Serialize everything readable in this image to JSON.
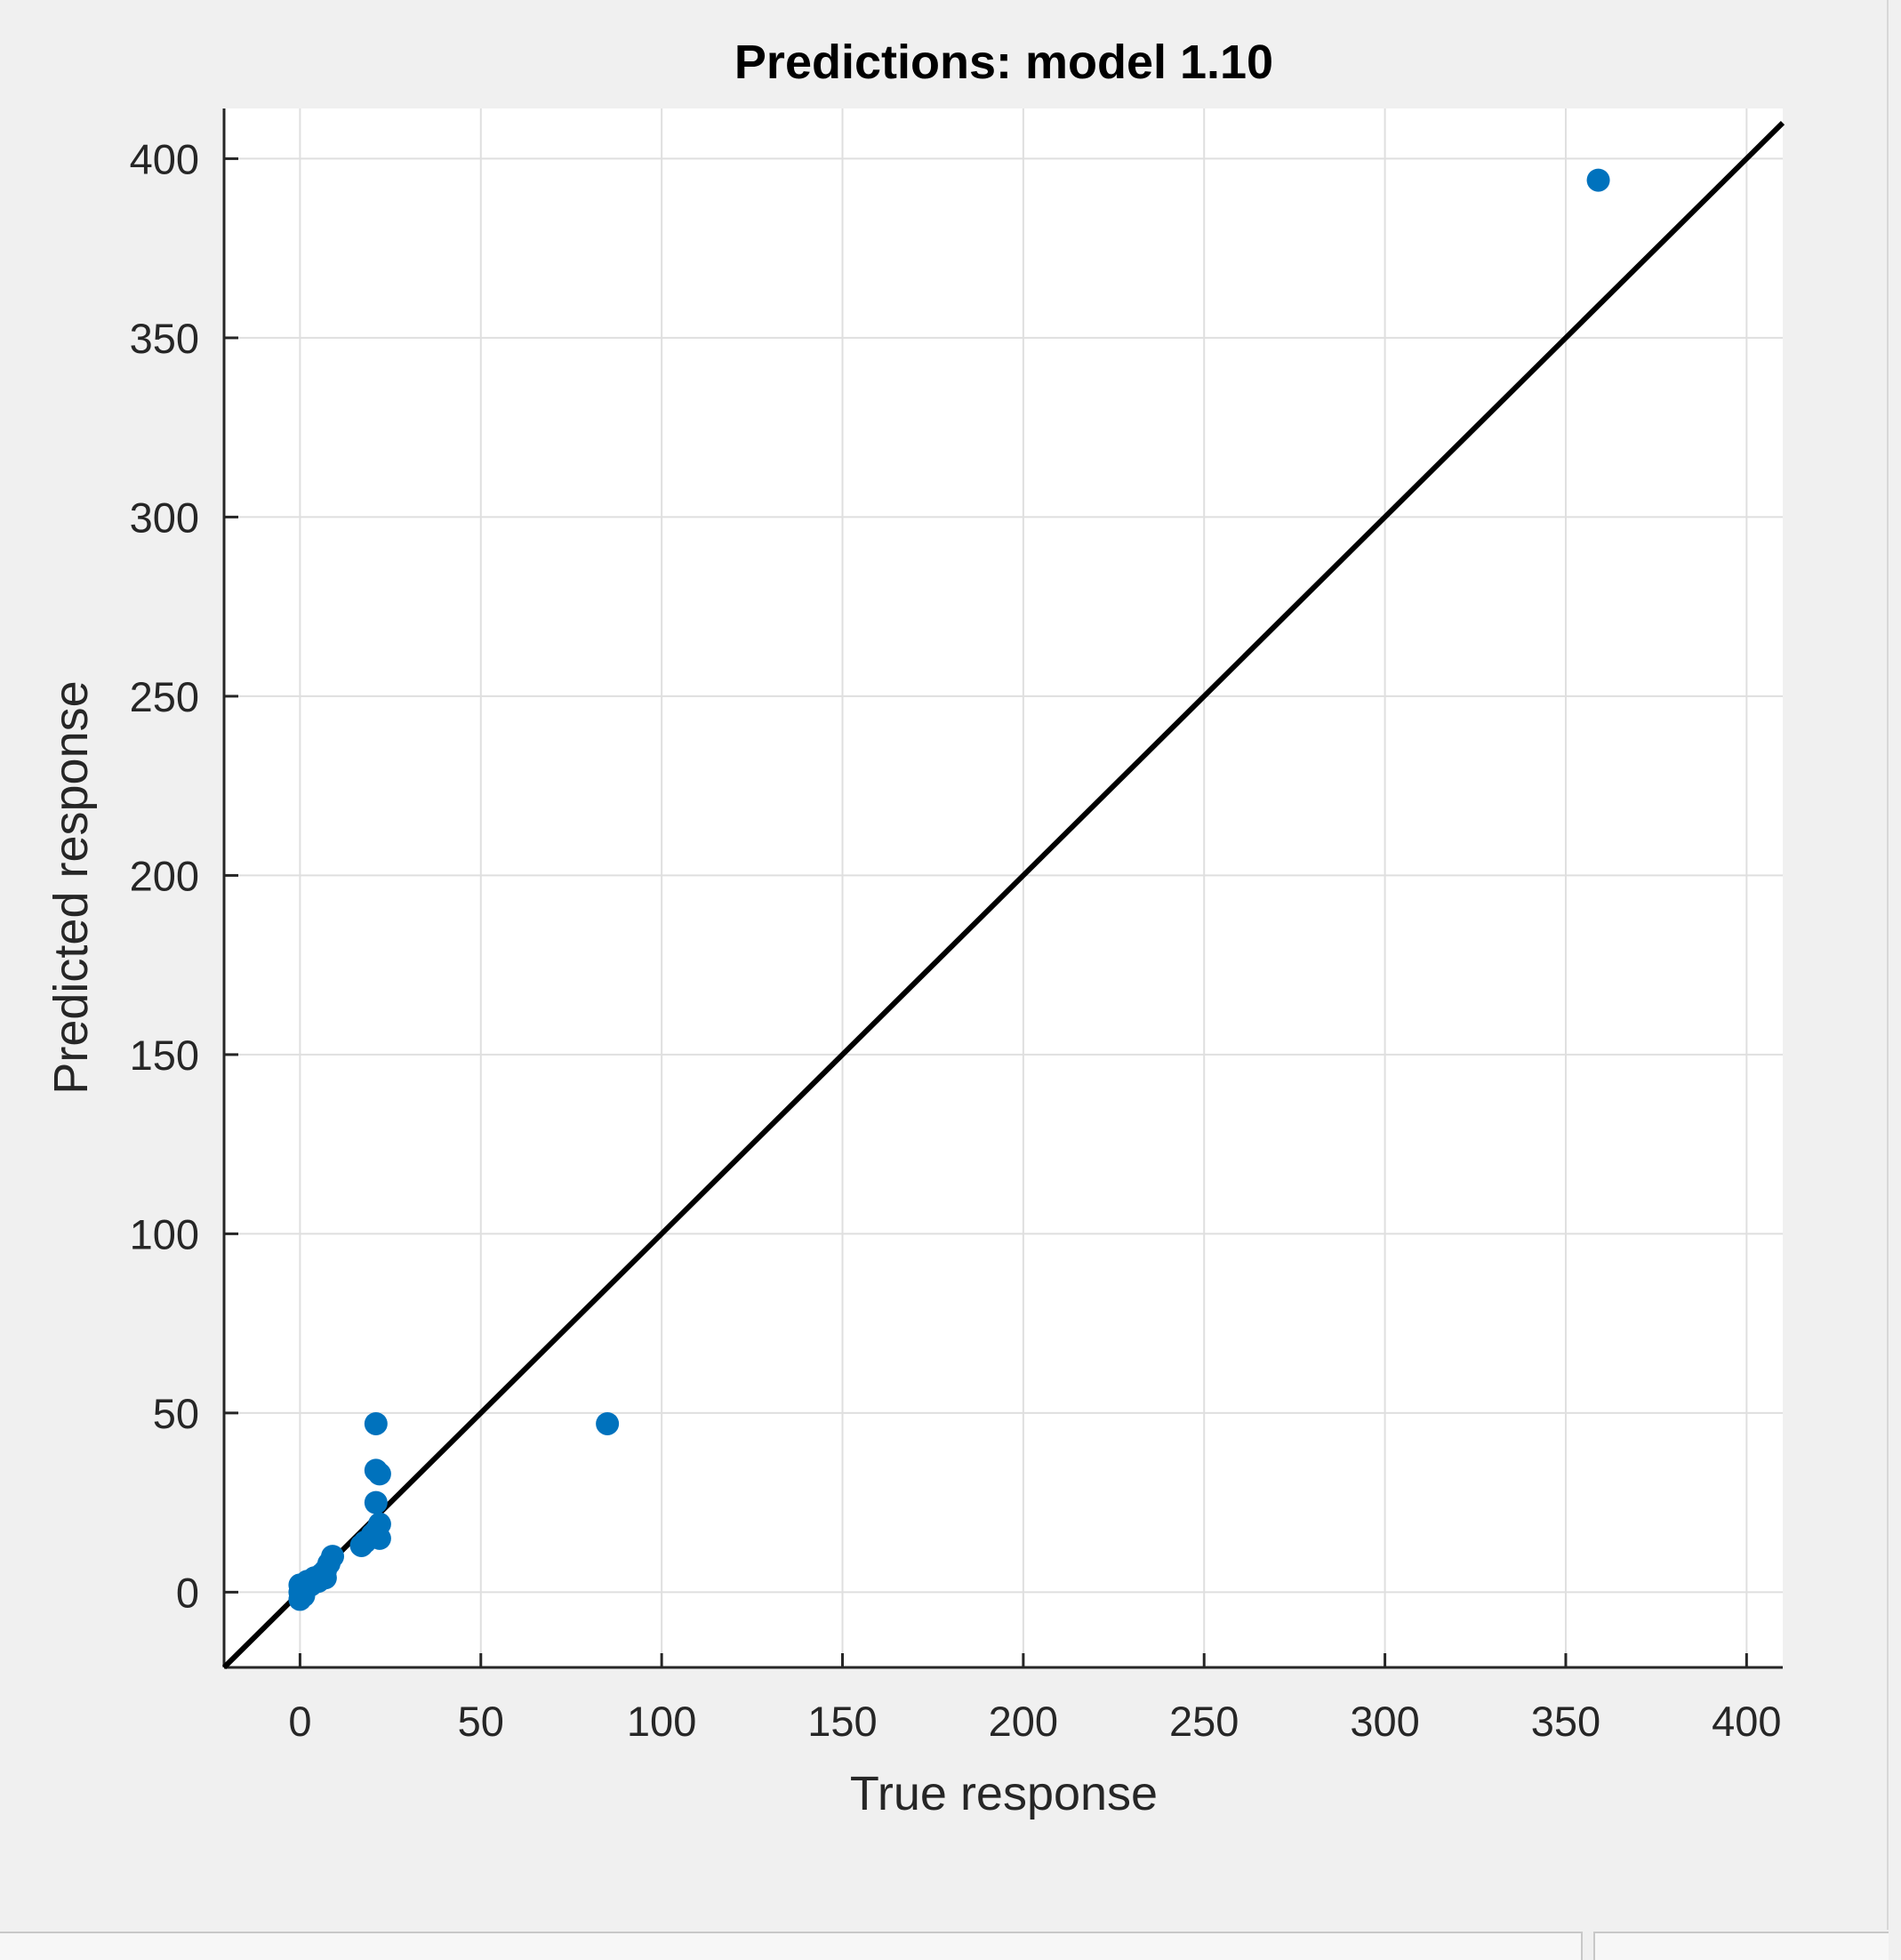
{
  "chart_data": {
    "type": "scatter",
    "title": "Predictions: model 1.10",
    "xlabel": "True response",
    "ylabel": "Predicted response",
    "xlim": [
      -21,
      410
    ],
    "ylim": [
      -21,
      414
    ],
    "xticks": [
      0,
      50,
      100,
      150,
      200,
      250,
      300,
      350,
      400
    ],
    "yticks": [
      0,
      50,
      100,
      150,
      200,
      250,
      300,
      350,
      400
    ],
    "grid": true,
    "reference_line": "y = x",
    "marker_color": "#0072bd",
    "line_color": "#000000",
    "points": [
      {
        "x": 359,
        "y": 394
      },
      {
        "x": 85,
        "y": 47
      },
      {
        "x": 21,
        "y": 47
      },
      {
        "x": 21,
        "y": 34
      },
      {
        "x": 22,
        "y": 33
      },
      {
        "x": 21,
        "y": 25
      },
      {
        "x": 22,
        "y": 19
      },
      {
        "x": 21,
        "y": 17
      },
      {
        "x": 22,
        "y": 15
      },
      {
        "x": 20,
        "y": 16
      },
      {
        "x": 17,
        "y": 13
      },
      {
        "x": 18,
        "y": 14
      },
      {
        "x": 9,
        "y": 10
      },
      {
        "x": 8,
        "y": 8
      },
      {
        "x": 7,
        "y": 6
      },
      {
        "x": 7,
        "y": 4
      },
      {
        "x": 6,
        "y": 5
      },
      {
        "x": 5,
        "y": 3
      },
      {
        "x": 4,
        "y": 4
      },
      {
        "x": 3,
        "y": 2
      },
      {
        "x": 2,
        "y": 3
      },
      {
        "x": 1,
        "y": 1
      },
      {
        "x": 0,
        "y": 2
      },
      {
        "x": 0,
        "y": 0
      },
      {
        "x": 1,
        "y": -1
      },
      {
        "x": 0,
        "y": -2
      }
    ]
  }
}
